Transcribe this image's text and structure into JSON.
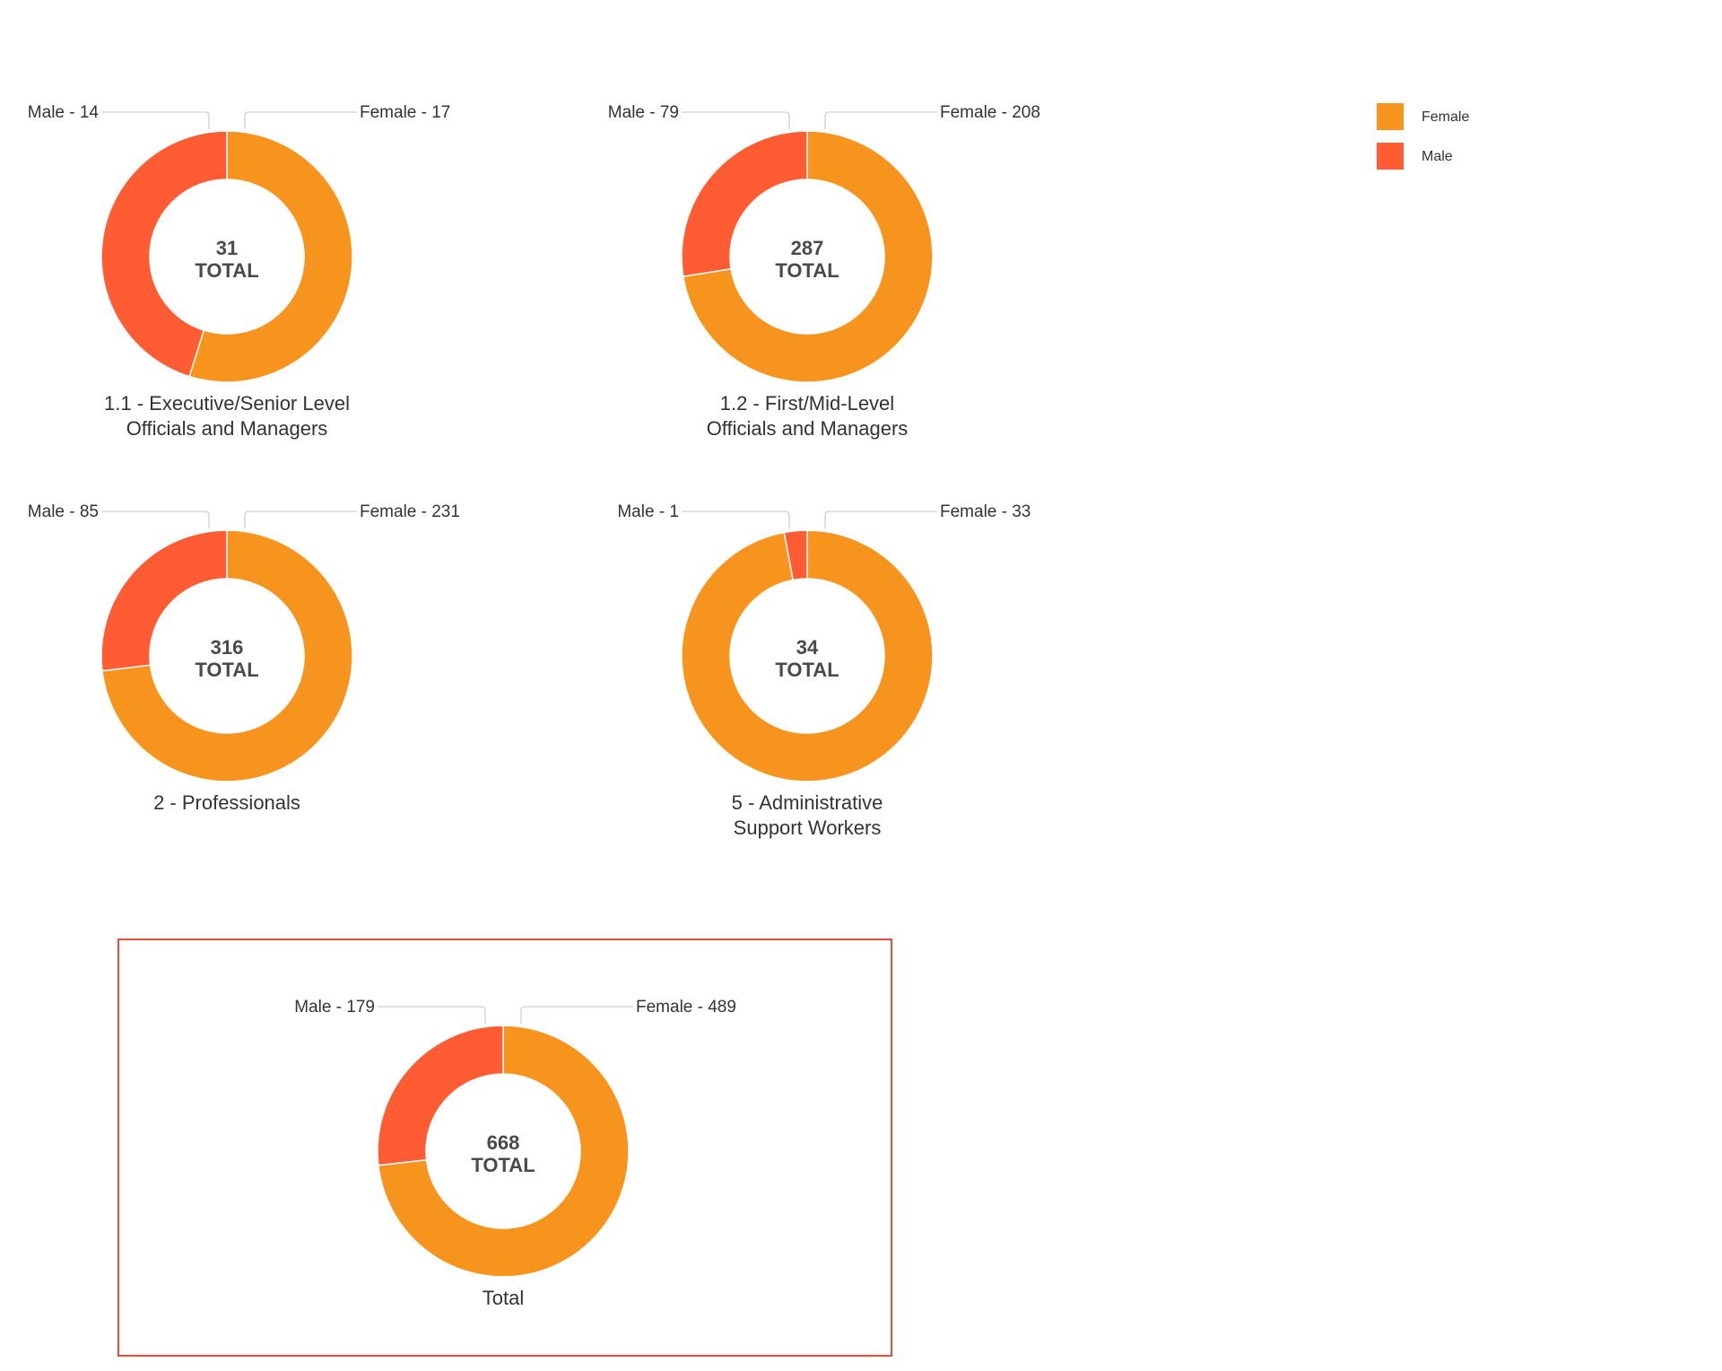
{
  "colors": {
    "female": "#f7941e",
    "male": "#ff5c33",
    "highlight_border": "#ef4b3a"
  },
  "legend": [
    {
      "name": "Female",
      "color": "#f7941e"
    },
    {
      "name": "Male",
      "color": "#ff5c33"
    }
  ],
  "center_suffix": "TOTAL",
  "chart_data": [
    {
      "type": "pie",
      "title": "1.1 - Executive/Senior Level Officials and Managers",
      "title_lines": [
        "1.1 - Executive/Senior Level",
        "Officials and Managers"
      ],
      "total": 31,
      "slices": [
        {
          "name": "Female",
          "value": 17,
          "label": "Female - 17"
        },
        {
          "name": "Male",
          "value": 14,
          "label": "Male - 14"
        }
      ]
    },
    {
      "type": "pie",
      "title": "1.2 - First/Mid-Level Officials and Managers",
      "title_lines": [
        "1.2 - First/Mid-Level",
        "Officials and Managers"
      ],
      "total": 287,
      "slices": [
        {
          "name": "Female",
          "value": 208,
          "label": "Female - 208"
        },
        {
          "name": "Male",
          "value": 79,
          "label": "Male - 79"
        }
      ]
    },
    {
      "type": "pie",
      "title": "2 - Professionals",
      "title_lines": [
        "2 - Professionals"
      ],
      "total": 316,
      "slices": [
        {
          "name": "Female",
          "value": 231,
          "label": "Female - 231"
        },
        {
          "name": "Male",
          "value": 85,
          "label": "Male - 85"
        }
      ]
    },
    {
      "type": "pie",
      "title": "5 - Administrative Support Workers",
      "title_lines": [
        "5 - Administrative",
        "Support Workers"
      ],
      "total": 34,
      "slices": [
        {
          "name": "Female",
          "value": 33,
          "label": "Female - 33"
        },
        {
          "name": "Male",
          "value": 1,
          "label": "Male - 1"
        }
      ]
    },
    {
      "type": "pie",
      "title": "Total",
      "title_lines": [
        "Total"
      ],
      "total": 668,
      "highlighted": true,
      "slices": [
        {
          "name": "Female",
          "value": 489,
          "label": "Female - 489"
        },
        {
          "name": "Male",
          "value": 179,
          "label": "Male - 179"
        }
      ]
    }
  ]
}
